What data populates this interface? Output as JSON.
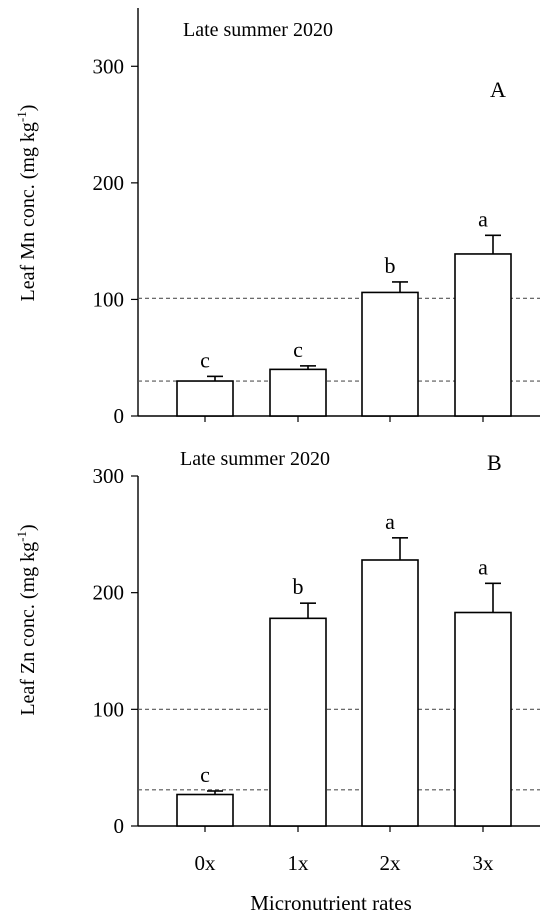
{
  "chart_data": [
    {
      "type": "bar",
      "panel": "A",
      "title": "Late summer 2020",
      "xlabel": "",
      "ylabel": "Leaf Mn conc. (mg kg",
      "ylabel_sup": "-1",
      "ylabel_close": ")",
      "ylim": [
        0,
        350
      ],
      "yticks": [
        0,
        100,
        200,
        300
      ],
      "ytick_labels": [
        "0",
        "100",
        "200",
        "300"
      ],
      "categories": [
        "0x",
        "1x",
        "2x",
        "3x"
      ],
      "values": [
        30,
        40,
        106,
        139
      ],
      "errors": [
        4,
        3,
        9,
        16
      ],
      "significance": [
        "c",
        "c",
        "b",
        "a"
      ],
      "reference_lines": [
        30,
        101
      ]
    },
    {
      "type": "bar",
      "panel": "B",
      "title": "Late summer 2020",
      "xlabel": "Micronutrient rates",
      "ylabel": "Leaf Zn conc. (mg kg",
      "ylabel_sup": "-1",
      "ylabel_close": ")",
      "ylim": [
        0,
        300
      ],
      "yticks": [
        0,
        100,
        200,
        300
      ],
      "ytick_labels": [
        "0",
        "100",
        "200",
        "300"
      ],
      "categories": [
        "0x",
        "1x",
        "2x",
        "3x"
      ],
      "values": [
        27,
        178,
        228,
        183
      ],
      "errors": [
        3,
        13,
        19,
        25
      ],
      "significance": [
        "c",
        "b",
        "a",
        "a"
      ],
      "reference_lines": [
        31,
        100
      ]
    }
  ]
}
